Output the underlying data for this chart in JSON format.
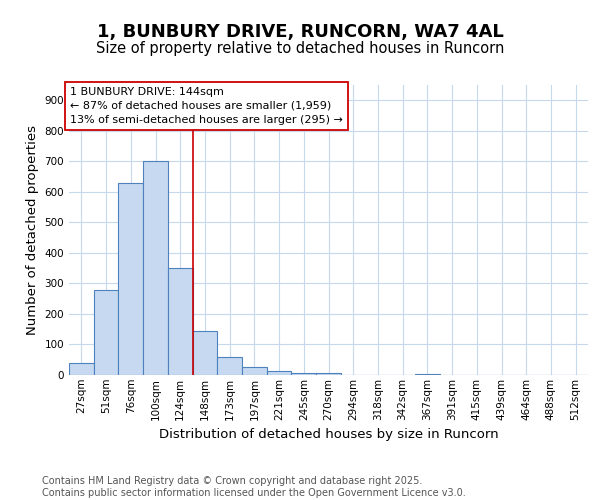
{
  "title": "1, BUNBURY DRIVE, RUNCORN, WA7 4AL",
  "subtitle": "Size of property relative to detached houses in Runcorn",
  "xlabel": "Distribution of detached houses by size in Runcorn",
  "ylabel": "Number of detached properties",
  "bin_labels": [
    "27sqm",
    "51sqm",
    "76sqm",
    "100sqm",
    "124sqm",
    "148sqm",
    "173sqm",
    "197sqm",
    "221sqm",
    "245sqm",
    "270sqm",
    "294sqm",
    "318sqm",
    "342sqm",
    "367sqm",
    "391sqm",
    "415sqm",
    "439sqm",
    "464sqm",
    "488sqm",
    "512sqm"
  ],
  "bar_heights": [
    40,
    280,
    630,
    700,
    350,
    145,
    60,
    25,
    12,
    8,
    5,
    0,
    0,
    0,
    3,
    0,
    0,
    0,
    0,
    0,
    0
  ],
  "bar_color": "#c6d9f1",
  "bar_edge_color": "#4f81bd",
  "vline_x": 4.5,
  "vline_color": "#cc0000",
  "annotation_text": "1 BUNBURY DRIVE: 144sqm\n← 87% of detached houses are smaller (1,959)\n13% of semi-detached houses are larger (295) →",
  "annotation_box_color": "#ffffff",
  "annotation_box_edge": "#cc0000",
  "ylim": [
    0,
    950
  ],
  "yticks": [
    0,
    100,
    200,
    300,
    400,
    500,
    600,
    700,
    800,
    900
  ],
  "footer_text": "Contains HM Land Registry data © Crown copyright and database right 2025.\nContains public sector information licensed under the Open Government Licence v3.0.",
  "bg_color": "#ffffff",
  "grid_color": "#c8d8ec",
  "title_fontsize": 13,
  "subtitle_fontsize": 10.5,
  "axis_label_fontsize": 9.5,
  "tick_fontsize": 7.5,
  "annotation_fontsize": 8,
  "footer_fontsize": 7
}
